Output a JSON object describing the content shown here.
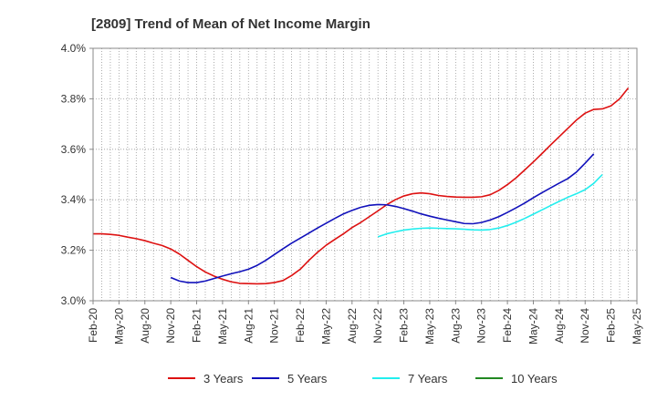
{
  "chart_data": {
    "type": "line",
    "title": "[2809]  Trend of Mean of Net Income Margin",
    "xlabel": "",
    "ylabel": "",
    "x_ticks": [
      "Feb-20",
      "May-20",
      "Aug-20",
      "Nov-20",
      "Feb-21",
      "May-21",
      "Aug-21",
      "Nov-21",
      "Feb-22",
      "May-22",
      "Aug-22",
      "Nov-22",
      "Feb-23",
      "May-23",
      "Aug-23",
      "Nov-23",
      "Feb-24",
      "May-24",
      "Aug-24",
      "Nov-24",
      "Feb-25",
      "May-25"
    ],
    "y_ticks": [
      "3.0%",
      "3.2%",
      "3.4%",
      "3.6%",
      "3.8%",
      "4.0%"
    ],
    "ylim": [
      3.0,
      4.0
    ],
    "grid": true,
    "legend_position": "bottom",
    "series": [
      {
        "name": "3 Years",
        "color": "#dd1111",
        "start": "Feb-20",
        "values": [
          3.265,
          3.265,
          3.263,
          3.259,
          3.252,
          3.246,
          3.238,
          3.228,
          3.219,
          3.205,
          3.185,
          3.16,
          3.135,
          3.114,
          3.098,
          3.085,
          3.075,
          3.069,
          3.068,
          3.067,
          3.068,
          3.072,
          3.08,
          3.1,
          3.125,
          3.16,
          3.192,
          3.22,
          3.243,
          3.265,
          3.29,
          3.31,
          3.333,
          3.356,
          3.38,
          3.4,
          3.415,
          3.424,
          3.427,
          3.424,
          3.417,
          3.413,
          3.411,
          3.41,
          3.41,
          3.412,
          3.42,
          3.437,
          3.46,
          3.487,
          3.518,
          3.55,
          3.583,
          3.617,
          3.65,
          3.683,
          3.716,
          3.743,
          3.758,
          3.76,
          3.772,
          3.8,
          3.843
        ]
      },
      {
        "name": "5 Years",
        "color": "#1111bb",
        "start": "Nov-20",
        "values": [
          3.092,
          3.078,
          3.072,
          3.072,
          3.078,
          3.088,
          3.098,
          3.107,
          3.115,
          3.125,
          3.14,
          3.16,
          3.183,
          3.206,
          3.228,
          3.248,
          3.268,
          3.288,
          3.307,
          3.326,
          3.344,
          3.358,
          3.37,
          3.378,
          3.381,
          3.38,
          3.374,
          3.365,
          3.355,
          3.344,
          3.335,
          3.327,
          3.32,
          3.313,
          3.306,
          3.305,
          3.31,
          3.32,
          3.333,
          3.35,
          3.368,
          3.387,
          3.408,
          3.428,
          3.447,
          3.466,
          3.484,
          3.51,
          3.545,
          3.582
        ]
      },
      {
        "name": "7 Years",
        "color": "#22eeee",
        "start": "Nov-22",
        "values": [
          3.253,
          3.265,
          3.273,
          3.28,
          3.284,
          3.287,
          3.288,
          3.287,
          3.286,
          3.285,
          3.283,
          3.281,
          3.28,
          3.282,
          3.288,
          3.298,
          3.311,
          3.326,
          3.343,
          3.36,
          3.377,
          3.394,
          3.41,
          3.424,
          3.44,
          3.465,
          3.5
        ]
      },
      {
        "name": "10 Years",
        "color": "#228822",
        "start": "Feb-25",
        "values": []
      }
    ]
  }
}
